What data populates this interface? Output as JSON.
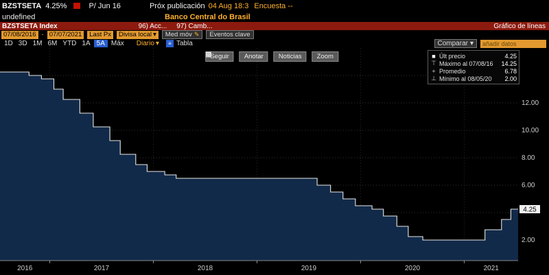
{
  "titlebar": {
    "ticker": "BZSTSETA",
    "last_value": "4.25%",
    "period_label": "P/ Jun 16",
    "next_publication_label": "Próx publicación",
    "next_publication_value": "04 Aug 18:3",
    "survey_label": "Encuesta --",
    "subtitle_left": "undefined",
    "source": "Banco Central do Brasil"
  },
  "redbar": {
    "security": "BZSTSETA Index",
    "menu_items": [
      "96) Acc...",
      "97) Camb..."
    ],
    "title": "Gráfico de líneas"
  },
  "toolbar": {
    "date_from": "07/08/2016",
    "date_separator": "-",
    "date_to": "07/07/2021",
    "price_field": "Last Px",
    "currency": "Divisa local",
    "mov_avg": "Med móv",
    "key_events": "Eventos clave"
  },
  "periods": {
    "items": [
      "1D",
      "3D",
      "1M",
      "6M",
      "YTD",
      "1A",
      "5A",
      "Máx"
    ],
    "selected": "5A",
    "frequency": "Diario",
    "table_label": "Tabla"
  },
  "chart_toolbar": {
    "buttons": [
      "Seguir",
      "Anotar",
      "Noticias",
      "Zoom"
    ]
  },
  "compare": {
    "label": "Comparar",
    "placeholder": "añadir datos"
  },
  "legend": {
    "rows": [
      {
        "icon": "■",
        "label": "Últ precio",
        "value": "4.25"
      },
      {
        "icon": "⊤",
        "label": "Máximo al 07/08/16",
        "value": "14.25"
      },
      {
        "icon": "+",
        "label": "Promedio",
        "value": "6.78"
      },
      {
        "icon": "⊥",
        "label": "Mínimo al 08/05/20",
        "value": "2.00"
      }
    ]
  },
  "icons": {
    "dropdown": "▾",
    "pencil": "✎",
    "table_glyph": "≡"
  },
  "chart_data": {
    "type": "area",
    "title": "Gráfico de líneas",
    "source": "Banco Central do Brasil",
    "series": [
      {
        "name": "BZSTSETA Index",
        "step": true,
        "points": [
          [
            2016.52,
            14.25
          ],
          [
            2016.8,
            14.0
          ],
          [
            2016.92,
            13.75
          ],
          [
            2017.04,
            13.0
          ],
          [
            2017.13,
            12.25
          ],
          [
            2017.29,
            11.25
          ],
          [
            2017.42,
            10.25
          ],
          [
            2017.58,
            9.25
          ],
          [
            2017.68,
            8.25
          ],
          [
            2017.83,
            7.5
          ],
          [
            2017.94,
            7.0
          ],
          [
            2018.11,
            6.75
          ],
          [
            2018.22,
            6.5
          ],
          [
            2019.58,
            6.0
          ],
          [
            2019.71,
            5.5
          ],
          [
            2019.83,
            5.0
          ],
          [
            2019.95,
            4.5
          ],
          [
            2020.11,
            4.25
          ],
          [
            2020.22,
            3.75
          ],
          [
            2020.35,
            3.0
          ],
          [
            2020.46,
            2.25
          ],
          [
            2020.6,
            2.0
          ],
          [
            2021.2,
            2.75
          ],
          [
            2021.36,
            3.5
          ],
          [
            2021.45,
            4.25
          ]
        ]
      }
    ],
    "x_domain": [
      2016.52,
      2021.52
    ],
    "y_domain": [
      0.5,
      16.0
    ],
    "y_ticks": [
      {
        "value": 2,
        "label": "2.00"
      },
      {
        "value": 6,
        "label": "6.00"
      },
      {
        "value": 8,
        "label": "8.00"
      },
      {
        "value": 10,
        "label": "10.00"
      },
      {
        "value": 12,
        "label": "12.00"
      }
    ],
    "y_gridlines": [
      2,
      4,
      6,
      8,
      10,
      12,
      14
    ],
    "x_gridlines": [
      2017,
      2018,
      2019,
      2020,
      2021
    ],
    "x_labels": [
      {
        "center": 2016.76,
        "label": "2016"
      },
      {
        "center": 2017.5,
        "label": "2017"
      },
      {
        "center": 2018.5,
        "label": "2018"
      },
      {
        "center": 2019.5,
        "label": "2019"
      },
      {
        "center": 2020.5,
        "label": "2020"
      },
      {
        "center": 2021.26,
        "label": "2021"
      }
    ],
    "last_price": {
      "value": 4.25,
      "label": "4.25"
    },
    "stats": {
      "last": "4.25",
      "max": "14.25",
      "max_date": "07/08/16",
      "avg": "6.78",
      "min": "2.00",
      "min_date": "08/05/20"
    },
    "colors": {
      "line": "#e8e8e8",
      "fill": "#122a49",
      "grid": "#343434",
      "vgrid": "#262626",
      "axis_text": "#cfcfcf",
      "badge_bg": "#f0f0f0",
      "badge_text": "#000000"
    }
  }
}
